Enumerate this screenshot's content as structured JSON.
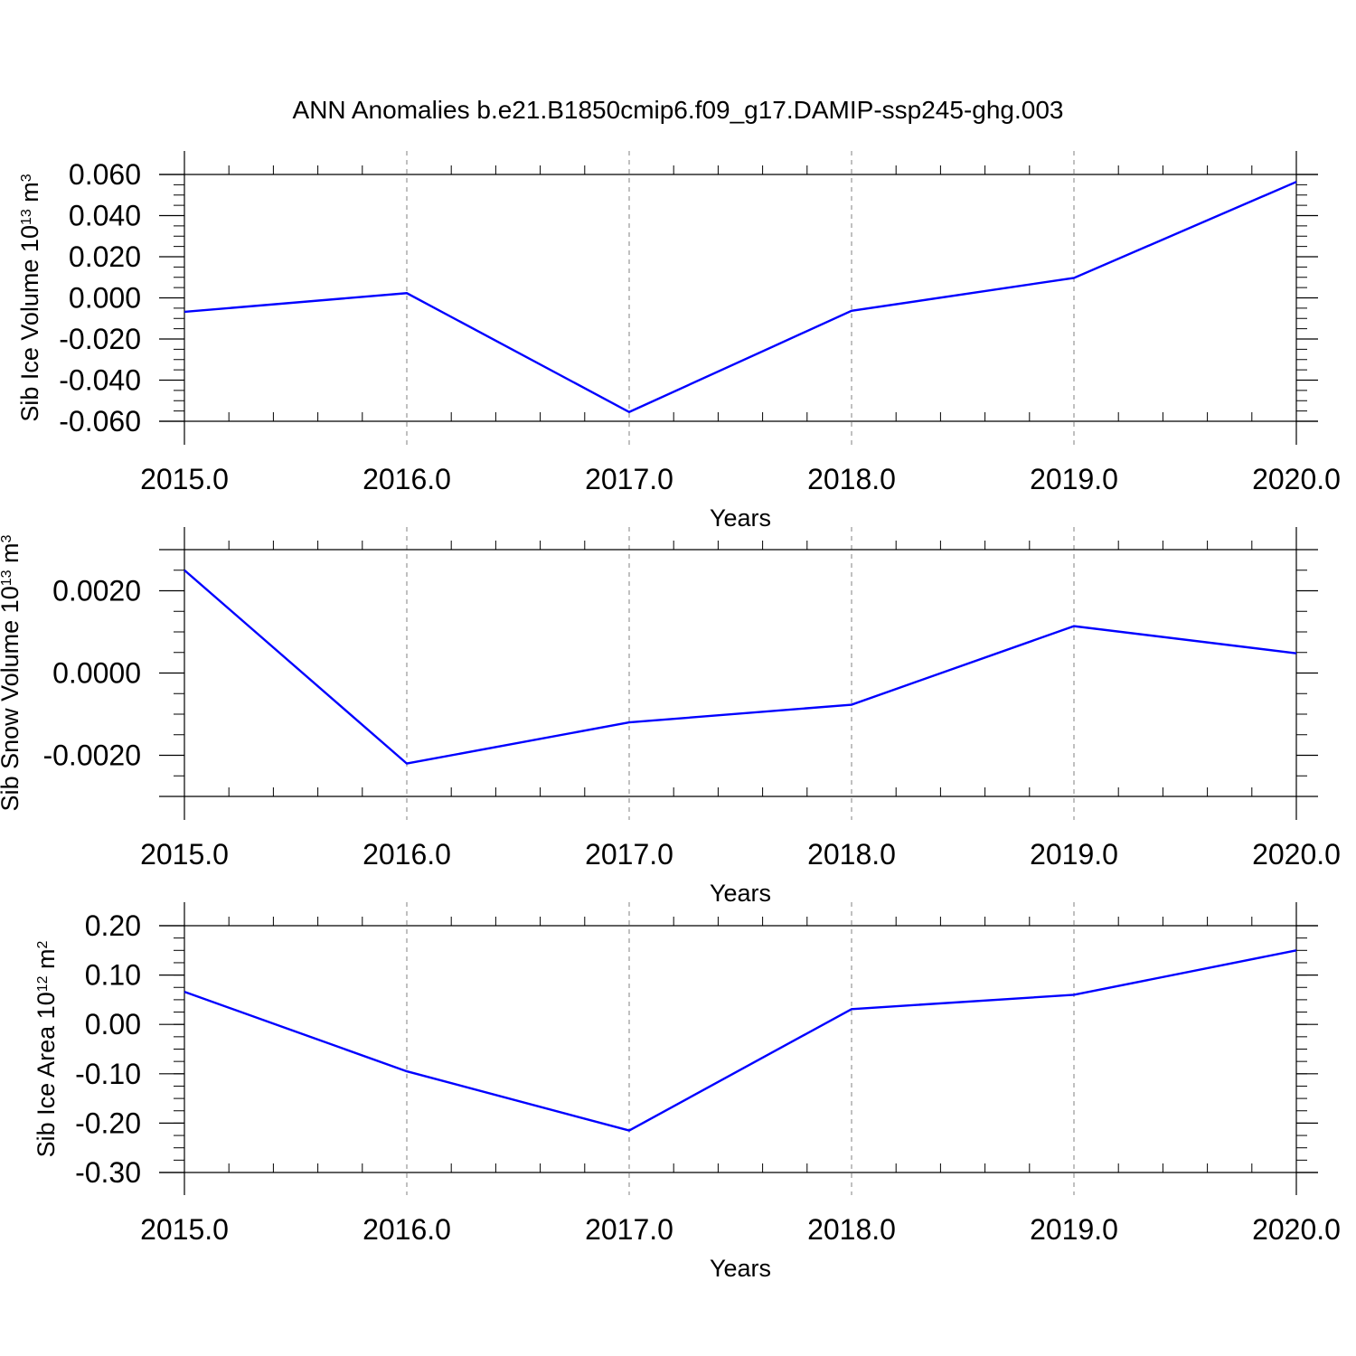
{
  "title": "ANN Anomalies b.e21.B1850cmip6.f09_g17.DAMIP-ssp245-ghg.003",
  "chart_data": [
    {
      "type": "line",
      "ylabel": {
        "text": "Sib Ice Volume 10",
        "exp": "13",
        "unit": " m",
        "unit_exp": "3"
      },
      "xlabel": "Years",
      "x": [
        2015,
        2016,
        2017,
        2018,
        2019,
        2020
      ],
      "xlim": [
        2015,
        2020
      ],
      "x_ticks": [
        "2015.0",
        "2016.0",
        "2017.0",
        "2018.0",
        "2019.0",
        "2020.0"
      ],
      "ylim": [
        -0.06,
        0.06
      ],
      "y_ticks": [
        "-0.060",
        "-0.040",
        "-0.020",
        "0.000",
        "0.020",
        "0.040",
        "0.060"
      ],
      "y_tick_values": [
        -0.06,
        -0.04,
        -0.02,
        0,
        0.02,
        0.04,
        0.06
      ],
      "series": [
        {
          "values": [
            -0.0068,
            0.0023,
            -0.0555,
            -0.0063,
            0.0097,
            0.0564
          ],
          "color": "#0000ff"
        }
      ],
      "grid": "vertical dashed at major x ticks"
    },
    {
      "type": "line",
      "ylabel": {
        "text": "Sib Snow Volume 10",
        "exp": "13",
        "unit": " m",
        "unit_exp": "3"
      },
      "xlabel": "Years",
      "x": [
        2015,
        2016,
        2017,
        2018,
        2019,
        2020
      ],
      "xlim": [
        2015,
        2020
      ],
      "x_ticks": [
        "2015.0",
        "2016.0",
        "2017.0",
        "2018.0",
        "2019.0",
        "2020.0"
      ],
      "ylim": [
        -0.003,
        0.003
      ],
      "y_ticks": [
        "-0.0020",
        "0.0000",
        "0.0020"
      ],
      "y_tick_values": [
        -0.002,
        0,
        0.002
      ],
      "series": [
        {
          "values": [
            0.0025,
            -0.0022,
            -0.0012,
            -0.00077,
            0.00114,
            0.00048
          ],
          "color": "#0000ff"
        }
      ],
      "grid": "vertical dashed at major x ticks"
    },
    {
      "type": "line",
      "ylabel": {
        "text": "Sib Ice Area 10",
        "exp": "12",
        "unit": " m",
        "unit_exp": "2"
      },
      "xlabel": "Years",
      "x": [
        2015,
        2016,
        2017,
        2018,
        2019,
        2020
      ],
      "xlim": [
        2015,
        2020
      ],
      "x_ticks": [
        "2015.0",
        "2016.0",
        "2017.0",
        "2018.0",
        "2019.0",
        "2020.0"
      ],
      "ylim": [
        -0.3,
        0.2
      ],
      "y_ticks": [
        "-0.30",
        "-0.20",
        "-0.10",
        "0.00",
        "0.10",
        "0.20"
      ],
      "y_tick_values": [
        -0.3,
        -0.2,
        -0.1,
        0,
        0.1,
        0.2
      ],
      "series": [
        {
          "values": [
            0.066,
            -0.095,
            -0.215,
            0.031,
            0.06,
            0.15
          ],
          "color": "#0000ff"
        }
      ],
      "grid": "vertical dashed at major x ticks"
    }
  ]
}
